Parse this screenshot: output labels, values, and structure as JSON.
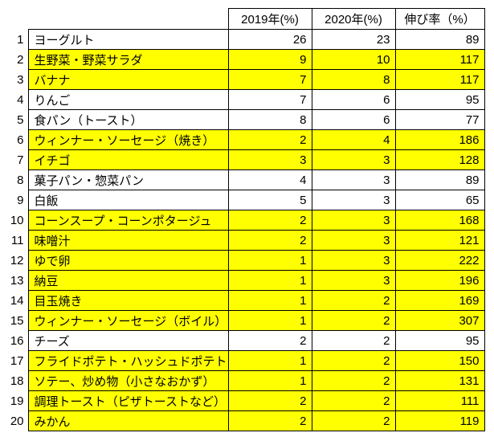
{
  "chart_data": {
    "type": "table",
    "description_of_columns": [
      "rank",
      "item",
      "2019 value",
      "2020 value",
      "growth rate"
    ],
    "headers": {
      "col2019": "2019年(%)",
      "col2020": "2020年(%)",
      "growth": "伸び率（%）"
    },
    "rows": [
      {
        "rank": "1",
        "item": "ヨーグルト",
        "y2019": "26",
        "y2020": "23",
        "growth": "89",
        "highlighted": false
      },
      {
        "rank": "2",
        "item": "生野菜・野菜サラダ",
        "y2019": "9",
        "y2020": "10",
        "growth": "117",
        "highlighted": true
      },
      {
        "rank": "3",
        "item": "バナナ",
        "y2019": "7",
        "y2020": "8",
        "growth": "117",
        "highlighted": true
      },
      {
        "rank": "4",
        "item": "りんご",
        "y2019": "7",
        "y2020": "6",
        "growth": "95",
        "highlighted": false
      },
      {
        "rank": "5",
        "item": "食パン（トースト）",
        "y2019": "8",
        "y2020": "6",
        "growth": "77",
        "highlighted": false
      },
      {
        "rank": "6",
        "item": "ウィンナー・ソーセージ（焼き）",
        "y2019": "2",
        "y2020": "4",
        "growth": "186",
        "highlighted": true
      },
      {
        "rank": "7",
        "item": "イチゴ",
        "y2019": "3",
        "y2020": "3",
        "growth": "128",
        "highlighted": true
      },
      {
        "rank": "8",
        "item": "菓子パン・惣菜パン",
        "y2019": "4",
        "y2020": "3",
        "growth": "89",
        "highlighted": false
      },
      {
        "rank": "9",
        "item": "白飯",
        "y2019": "5",
        "y2020": "3",
        "growth": "65",
        "highlighted": false
      },
      {
        "rank": "10",
        "item": "コーンスープ・コーンポタージュ",
        "y2019": "2",
        "y2020": "3",
        "growth": "168",
        "highlighted": true
      },
      {
        "rank": "11",
        "item": "味噌汁",
        "y2019": "2",
        "y2020": "3",
        "growth": "121",
        "highlighted": true
      },
      {
        "rank": "12",
        "item": "ゆで卵",
        "y2019": "1",
        "y2020": "3",
        "growth": "222",
        "highlighted": true
      },
      {
        "rank": "13",
        "item": "納豆",
        "y2019": "1",
        "y2020": "3",
        "growth": "196",
        "highlighted": true
      },
      {
        "rank": "14",
        "item": "目玉焼き",
        "y2019": "1",
        "y2020": "2",
        "growth": "169",
        "highlighted": true
      },
      {
        "rank": "15",
        "item": "ウィンナー・ソーセージ（ボイル）",
        "y2019": "1",
        "y2020": "2",
        "growth": "307",
        "highlighted": true
      },
      {
        "rank": "16",
        "item": "チーズ",
        "y2019": "2",
        "y2020": "2",
        "growth": "95",
        "highlighted": false
      },
      {
        "rank": "17",
        "item": "フライドポテト・ハッシュドポテト",
        "y2019": "1",
        "y2020": "2",
        "growth": "150",
        "highlighted": true
      },
      {
        "rank": "18",
        "item": "ソテー、炒め物（小さなおかず）",
        "y2019": "1",
        "y2020": "2",
        "growth": "131",
        "highlighted": true
      },
      {
        "rank": "19",
        "item": "調理トースト（ピザトーストなど）",
        "y2019": "2",
        "y2020": "2",
        "growth": "111",
        "highlighted": true
      },
      {
        "rank": "20",
        "item": "みかん",
        "y2019": "2",
        "y2020": "2",
        "growth": "119",
        "highlighted": true
      }
    ]
  },
  "colors": {
    "highlight": "#FFFF00",
    "border": "#000000",
    "background": "#FFFFFF",
    "text": "#000000"
  }
}
